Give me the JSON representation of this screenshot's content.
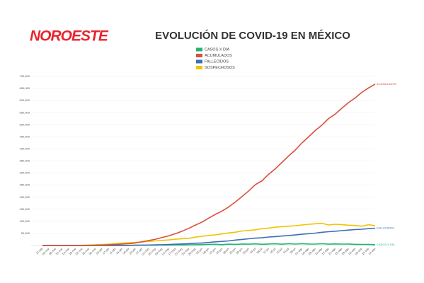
{
  "chart_data": {
    "type": "line",
    "brand": "NOROESTE",
    "title": "EVOLUCIÓN DE COVID-19 EN MÉXICO",
    "categories": [
      "27-feb",
      "02-mar",
      "06-mar",
      "10-mar",
      "14-mar",
      "18-mar",
      "22-mar",
      "26-mar",
      "30-mar",
      "03-abr",
      "07-abr",
      "11-abr",
      "15-abr",
      "19-abr",
      "23-abr",
      "27-abr",
      "01-may",
      "05-may",
      "09-may",
      "13-may",
      "17-may",
      "21-may",
      "25-may",
      "29-may",
      "02-jun",
      "06-jun",
      "10-jun",
      "14-jun",
      "18-jun",
      "22-jun",
      "26-jun",
      "30-jun",
      "04-jul",
      "08-jul",
      "12-jul",
      "16-jul",
      "20-jul",
      "24-jul",
      "28-jul",
      "01-ago",
      "05-ago",
      "09-ago",
      "13-ago",
      "17-ago",
      "21-ago",
      "25-ago",
      "29-ago",
      "02-sep",
      "06-sep",
      "10-sep",
      "14-sep"
    ],
    "series": [
      {
        "name": "CASOS X DÍA",
        "color": "#22b573",
        "values": [
          1,
          1,
          0,
          1,
          12,
          25,
          65,
          80,
          101,
          178,
          296,
          396,
          491,
          622,
          1089,
          1223,
          1425,
          1434,
          1906,
          1997,
          2414,
          2248,
          2764,
          3227,
          3891,
          4346,
          4883,
          3494,
          5662,
          4577,
          6104,
          5432,
          6740,
          4902,
          6094,
          7051,
          5311,
          7573,
          5806,
          7730,
          6139,
          5858,
          7371,
          5448,
          6482,
          5908,
          6208,
          4620,
          4442,
          4771,
          3335
        ]
      },
      {
        "name": "ACUMULADOS",
        "color": "#d94f3d",
        "values": [
          1,
          5,
          6,
          7,
          26,
          118,
          316,
          585,
          1094,
          1688,
          2785,
          4219,
          5847,
          7497,
          10544,
          15529,
          20739,
          26025,
          33460,
          40186,
          49219,
          59567,
          71105,
          84627,
          97326,
          113619,
          129184,
          142690,
          159793,
          180545,
          202951,
          226089,
          252165,
          268008,
          295268,
          317635,
          344224,
          370712,
          395489,
          424637,
          449961,
          475902,
          498380,
          525733,
          543806,
          568621,
          591712,
          610957,
          634023,
          652364,
          668381
        ]
      },
      {
        "name": "FALLECIDOS",
        "color": "#3b6fb6",
        "values": [
          0,
          0,
          0,
          0,
          0,
          1,
          2,
          8,
          28,
          37,
          141,
          296,
          449,
          650,
          970,
          1434,
          1972,
          2507,
          3353,
          4220,
          5177,
          6510,
          7633,
          9415,
          10637,
          12545,
          15357,
          16872,
          19080,
          22584,
          25060,
          27769,
          30366,
          32014,
          35006,
          36906,
          39184,
          41190,
          43680,
          46688,
          48869,
          51311,
          54666,
          57023,
          59106,
          61450,
          63819,
          65816,
          67326,
          69649,
          71678
        ]
      },
      {
        "name": "SOSPECHOSOS",
        "color": "#f2c200",
        "values": [
          0,
          10,
          20,
          50,
          150,
          400,
          1000,
          2000,
          3000,
          4500,
          6000,
          8000,
          10000,
          11000,
          13000,
          15000,
          17000,
          19000,
          21000,
          23000,
          26000,
          28000,
          30000,
          35000,
          38000,
          42000,
          44000,
          48000,
          52000,
          55000,
          60000,
          62000,
          65000,
          70000,
          72000,
          76000,
          78000,
          80000,
          82000,
          85000,
          88000,
          90000,
          92000,
          85000,
          88000,
          86000,
          84000,
          83000,
          80000,
          86000,
          82000
        ]
      }
    ],
    "ylim": [
      0,
      700000
    ],
    "yticks": [
      {
        "value": 50000,
        "label": "50,000"
      },
      {
        "value": 100000,
        "label": "100,000"
      },
      {
        "value": 150000,
        "label": "150,000"
      },
      {
        "value": 200000,
        "label": "200,000"
      },
      {
        "value": 250000,
        "label": "250,000"
      },
      {
        "value": 300000,
        "label": "300,000"
      },
      {
        "value": 350000,
        "label": "350,000"
      },
      {
        "value": 400000,
        "label": "400,000"
      },
      {
        "value": 450000,
        "label": "450,000"
      },
      {
        "value": 500000,
        "label": "500,000"
      },
      {
        "value": 550000,
        "label": "550,000"
      },
      {
        "value": 600000,
        "label": "600,000"
      },
      {
        "value": 650000,
        "label": "650,000"
      },
      {
        "value": 700000,
        "label": "700,000"
      }
    ],
    "grid": true
  }
}
